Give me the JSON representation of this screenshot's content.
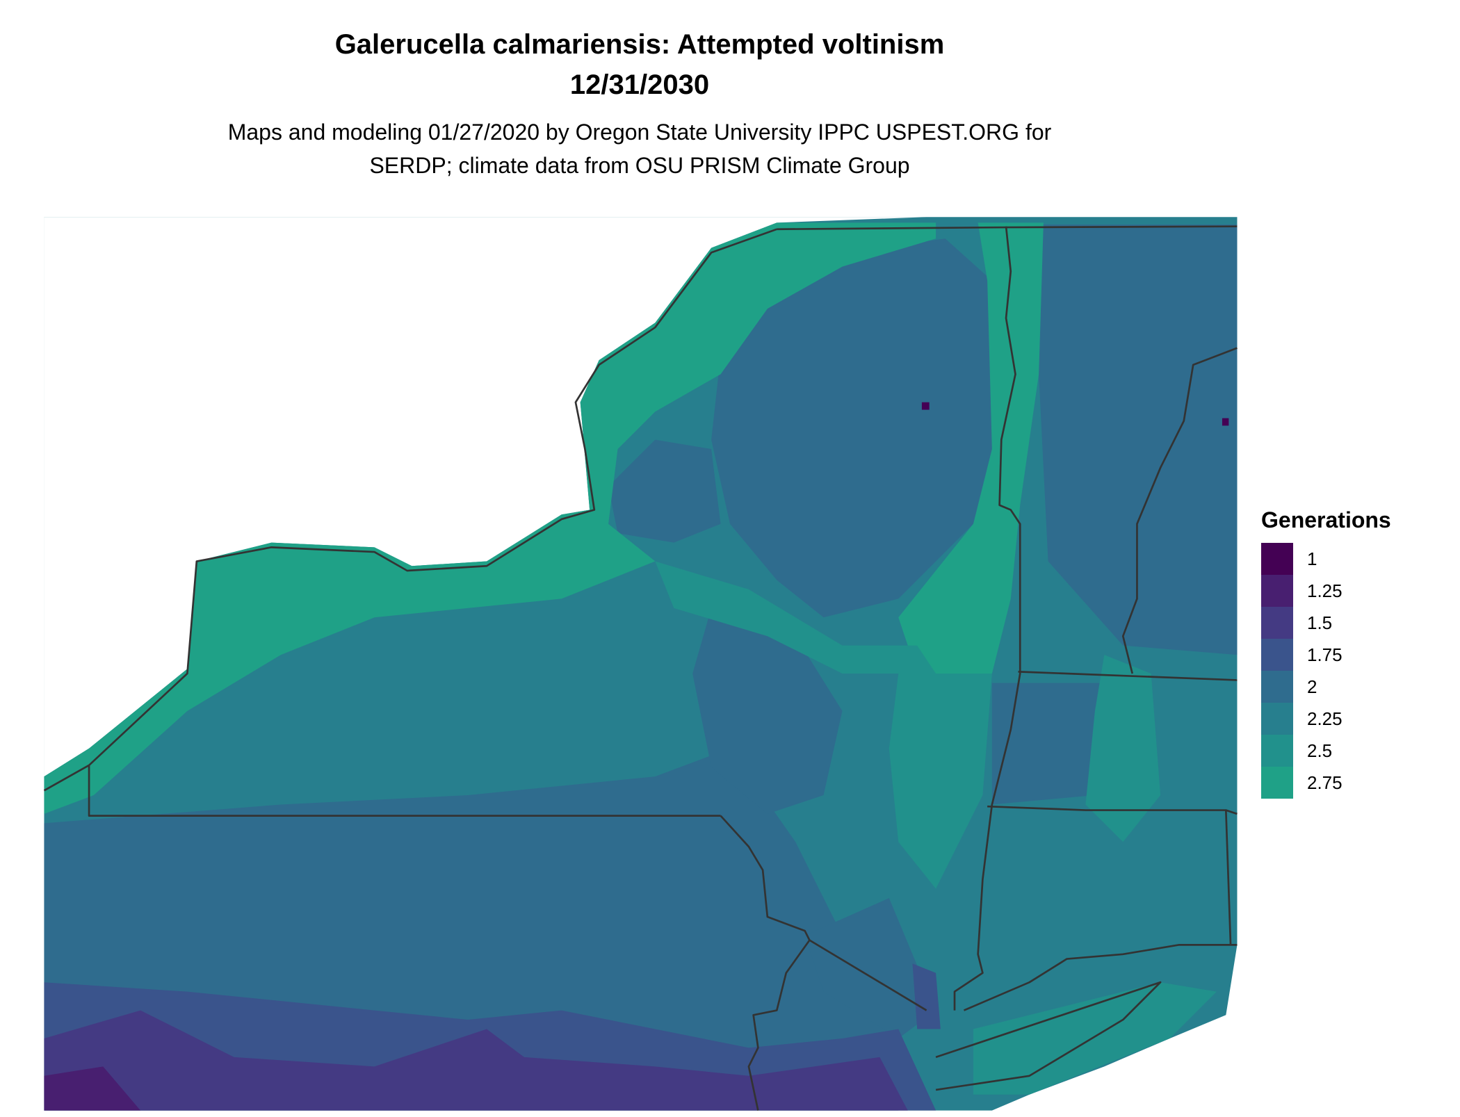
{
  "title": "Galerucella calmariensis: Attempted voltinism",
  "date": "12/31/2030",
  "subtitle_line1": "Maps and modeling 01/27/2020 by Oregon State University IPPC USPEST.ORG for",
  "subtitle_line2": "SERDP; climate data from OSU PRISM Climate Group",
  "chart_data": {
    "type": "heatmap",
    "legend": {
      "title": "Generations",
      "placement": "right",
      "items": [
        {
          "label": "1",
          "value": 1,
          "color": "#440154"
        },
        {
          "label": "1.25",
          "value": 1.25,
          "color": "#481F70"
        },
        {
          "label": "1.5",
          "value": 1.5,
          "color": "#443A83"
        },
        {
          "label": "1.75",
          "value": 1.75,
          "color": "#3A548C"
        },
        {
          "label": "2",
          "value": 2,
          "color": "#2F6C8E"
        },
        {
          "label": "2.25",
          "value": 2.25,
          "color": "#277F8E"
        },
        {
          "label": "2.5",
          "value": 2.5,
          "color": "#21918C"
        },
        {
          "label": "2.75",
          "value": 2.75,
          "color": "#1FA187"
        }
      ]
    }
  }
}
